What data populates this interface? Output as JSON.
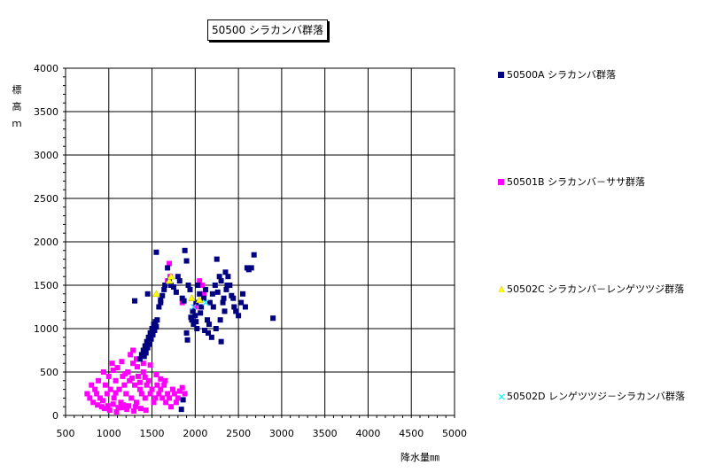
{
  "chart_data": {
    "type": "scatter",
    "title": "50500 シラカンバ群落",
    "xlabel": "降水量㎜",
    "ylabel": "標高ｍ",
    "xlim": [
      500,
      5000
    ],
    "ylim": [
      0,
      4000
    ],
    "x_ticks": [
      "500",
      "1000",
      "1500",
      "2000",
      "2500",
      "3000",
      "3500",
      "4000",
      "4500",
      "5000"
    ],
    "y_ticks": [
      "0",
      "500",
      "1000",
      "1500",
      "2000",
      "2500",
      "3000",
      "3500",
      "4000"
    ],
    "grid": true,
    "legend_position": "right",
    "series": [
      {
        "name": "50500A シラカンバ群落",
        "color": "#000080",
        "marker": "square",
        "points": [
          [
            1400,
            750
          ],
          [
            1420,
            800
          ],
          [
            1440,
            850
          ],
          [
            1460,
            900
          ],
          [
            1480,
            950
          ],
          [
            1500,
            1000
          ],
          [
            1520,
            1050
          ],
          [
            1540,
            1080
          ],
          [
            1380,
            700
          ],
          [
            1360,
            650
          ],
          [
            1450,
            780
          ],
          [
            1470,
            820
          ],
          [
            1490,
            880
          ],
          [
            1510,
            930
          ],
          [
            1530,
            980
          ],
          [
            1550,
            1020
          ],
          [
            1430,
            720
          ],
          [
            1410,
            680
          ],
          [
            1560,
            1100
          ],
          [
            1580,
            1250
          ],
          [
            1600,
            1300
          ],
          [
            1620,
            1380
          ],
          [
            1640,
            1450
          ],
          [
            1650,
            1500
          ],
          [
            1550,
            1880
          ],
          [
            1680,
            1700
          ],
          [
            1700,
            1550
          ],
          [
            1720,
            1500
          ],
          [
            1750,
            1480
          ],
          [
            1780,
            1420
          ],
          [
            1800,
            1600
          ],
          [
            1820,
            1550
          ],
          [
            1850,
            1350
          ],
          [
            1870,
            1320
          ],
          [
            1880,
            1900
          ],
          [
            1900,
            1780
          ],
          [
            1920,
            1500
          ],
          [
            1940,
            1450
          ],
          [
            1950,
            1130
          ],
          [
            1960,
            1100
          ],
          [
            1970,
            1200
          ],
          [
            1980,
            1050
          ],
          [
            2000,
            1150
          ],
          [
            2010,
            1300
          ],
          [
            2020,
            1000
          ],
          [
            2030,
            1500
          ],
          [
            2050,
            1400
          ],
          [
            2070,
            1250
          ],
          [
            2100,
            1350
          ],
          [
            2120,
            1450
          ],
          [
            2140,
            1100
          ],
          [
            2150,
            950
          ],
          [
            2170,
            1300
          ],
          [
            2200,
            1400
          ],
          [
            2210,
            1250
          ],
          [
            2230,
            1500
          ],
          [
            2250,
            1800
          ],
          [
            2260,
            1420
          ],
          [
            2280,
            1600
          ],
          [
            2300,
            1550
          ],
          [
            2320,
            1300
          ],
          [
            2340,
            1200
          ],
          [
            2350,
            1650
          ],
          [
            2360,
            1450
          ],
          [
            2380,
            1600
          ],
          [
            2400,
            1500
          ],
          [
            2420,
            1380
          ],
          [
            2440,
            1350
          ],
          [
            2450,
            1250
          ],
          [
            2470,
            1200
          ],
          [
            2500,
            1150
          ],
          [
            2530,
            1300
          ],
          [
            2550,
            1400
          ],
          [
            2580,
            1250
          ],
          [
            2600,
            1700
          ],
          [
            2620,
            1680
          ],
          [
            2650,
            1700
          ],
          [
            2680,
            1850
          ],
          [
            2900,
            1120
          ],
          [
            2300,
            850
          ],
          [
            1860,
            180
          ],
          [
            1840,
            70
          ],
          [
            1900,
            950
          ],
          [
            1910,
            870
          ],
          [
            2010,
            1080
          ],
          [
            2060,
            1180
          ],
          [
            2110,
            980
          ],
          [
            2160,
            1050
          ],
          [
            2190,
            900
          ],
          [
            2240,
            1000
          ],
          [
            2290,
            1100
          ],
          [
            2330,
            1350
          ],
          [
            2370,
            1500
          ],
          [
            1600,
            1330
          ],
          [
            1450,
            1400
          ],
          [
            1300,
            1320
          ]
        ]
      },
      {
        "name": "50501B シラカンバ－ササ群落",
        "color": "#ff00ff",
        "marker": "square",
        "points": [
          [
            750,
            250
          ],
          [
            780,
            200
          ],
          [
            800,
            350
          ],
          [
            820,
            150
          ],
          [
            840,
            300
          ],
          [
            860,
            250
          ],
          [
            880,
            400
          ],
          [
            900,
            200
          ],
          [
            920,
            100
          ],
          [
            940,
            500
          ],
          [
            960,
            350
          ],
          [
            980,
            250
          ],
          [
            1000,
            450
          ],
          [
            1020,
            300
          ],
          [
            1040,
            600
          ],
          [
            1060,
            200
          ],
          [
            1080,
            400
          ],
          [
            1100,
            550
          ],
          [
            1120,
            300
          ],
          [
            1140,
            150
          ],
          [
            1160,
            450
          ],
          [
            1180,
            350
          ],
          [
            1200,
            250
          ],
          [
            1220,
            500
          ],
          [
            1240,
            400
          ],
          [
            1260,
            200
          ],
          [
            1280,
            600
          ],
          [
            1300,
            350
          ],
          [
            1320,
            150
          ],
          [
            1340,
            450
          ],
          [
            1360,
            300
          ],
          [
            1380,
            250
          ],
          [
            1400,
            500
          ],
          [
            1420,
            200
          ],
          [
            1440,
            350
          ],
          [
            1460,
            400
          ],
          [
            1480,
            250
          ],
          [
            1500,
            300
          ],
          [
            1520,
            150
          ],
          [
            1540,
            200
          ],
          [
            1560,
            350
          ],
          [
            1580,
            250
          ],
          [
            1600,
            300
          ],
          [
            1620,
            200
          ],
          [
            1640,
            350
          ],
          [
            1660,
            150
          ],
          [
            1680,
            250
          ],
          [
            1700,
            200
          ],
          [
            1720,
            100
          ],
          [
            1740,
            300
          ],
          [
            1760,
            250
          ],
          [
            1780,
            150
          ],
          [
            1800,
            200
          ],
          [
            1820,
            280
          ],
          [
            1850,
            320
          ],
          [
            1880,
            250
          ],
          [
            950,
            80
          ],
          [
            1010,
            60
          ],
          [
            1090,
            40
          ],
          [
            1150,
            90
          ],
          [
            1210,
            70
          ],
          [
            1290,
            50
          ],
          [
            1370,
            80
          ],
          [
            1430,
            60
          ],
          [
            870,
            120
          ],
          [
            930,
            170
          ],
          [
            990,
            110
          ],
          [
            1050,
            130
          ],
          [
            1110,
            90
          ],
          [
            1170,
            120
          ],
          [
            1230,
            110
          ],
          [
            1310,
            100
          ],
          [
            1250,
            700
          ],
          [
            1280,
            750
          ],
          [
            1320,
            650
          ],
          [
            1400,
            600
          ],
          [
            1480,
            580
          ],
          [
            1550,
            470
          ],
          [
            1600,
            420
          ],
          [
            1650,
            400
          ],
          [
            1700,
            1750
          ],
          [
            1710,
            1600
          ],
          [
            1680,
            1550
          ],
          [
            2050,
            1550
          ],
          [
            2080,
            1500
          ],
          [
            2100,
            1400
          ],
          [
            2000,
            1250
          ],
          [
            1850,
            1300
          ],
          [
            1150,
            620
          ],
          [
            1050,
            520
          ],
          [
            1330,
            560
          ],
          [
            1190,
            480
          ],
          [
            1270,
            430
          ],
          [
            1360,
            380
          ],
          [
            1420,
            440
          ],
          [
            1080,
            260
          ]
        ]
      },
      {
        "name": "50502C シラカンバ－レンゲツツジ群落",
        "color": "#ffff00",
        "marker": "triangle",
        "points": [
          [
            1700,
            1550
          ],
          [
            1720,
            1600
          ],
          [
            1960,
            1350
          ],
          [
            2050,
            1330
          ],
          [
            1550,
            1400
          ]
        ]
      },
      {
        "name": "50502D レンゲツツジ－シラカンバ群落",
        "color": "#00ffff",
        "marker": "x",
        "points": [
          [
            1980,
            1250
          ],
          [
            2120,
            1300
          ]
        ]
      }
    ]
  }
}
